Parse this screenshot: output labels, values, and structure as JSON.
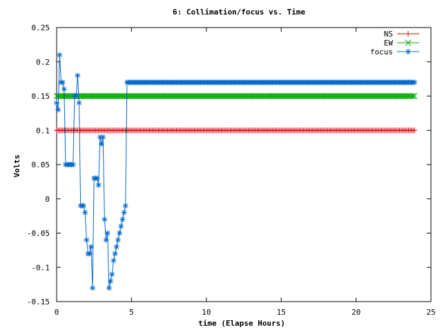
{
  "chart_data": {
    "type": "line",
    "title": "6: Collimation/focus vs. Time",
    "xlabel": "time (Elapse Hours)",
    "ylabel": "Volts",
    "xlim": [
      0,
      25
    ],
    "ylim": [
      -0.15,
      0.25
    ],
    "xticks": [
      0,
      5,
      10,
      15,
      20,
      25
    ],
    "xtick_labels": [
      "0",
      "5",
      "10",
      "15",
      "20",
      "25"
    ],
    "yticks": [
      -0.15,
      -0.1,
      -0.05,
      0,
      0.05,
      0.1,
      0.15,
      0.2,
      0.25
    ],
    "ytick_labels": [
      "-0.15",
      "-0.1",
      "-0.05",
      "0",
      "0.05",
      "0.1",
      "0.15",
      "0.2",
      "0.25"
    ],
    "grid": false,
    "legend": "top-right",
    "series": [
      {
        "name": "NS",
        "color": "#cc0000",
        "marker": "plus",
        "x_start": 0,
        "x_end": 23.9,
        "x_step": 0.1,
        "constant": 0.1
      },
      {
        "name": "EW",
        "color": "#00aa00",
        "marker": "cross",
        "x_start": 0,
        "x_end": 23.9,
        "x_step": 0.1,
        "constant": 0.15
      },
      {
        "name": "focus",
        "color": "#0066cc",
        "marker": "star",
        "x": [
          0.0,
          0.1,
          0.2,
          0.3,
          0.4,
          0.5,
          0.6,
          0.7,
          0.8,
          0.9,
          1.0,
          1.1,
          1.2,
          1.3,
          1.4,
          1.5,
          1.6,
          1.7,
          1.8,
          1.9,
          2.0,
          2.1,
          2.2,
          2.3,
          2.4,
          2.5,
          2.6,
          2.7,
          2.8,
          2.9,
          3.0,
          3.1,
          3.2,
          3.3,
          3.4,
          3.5,
          3.6,
          3.7,
          3.8,
          3.9,
          4.0,
          4.1,
          4.2,
          4.3,
          4.4,
          4.5,
          4.6,
          4.7,
          4.8,
          4.9,
          5.0,
          5.1,
          5.2,
          5.3,
          5.4,
          5.5
        ],
        "values": [
          0.14,
          0.13,
          0.21,
          0.17,
          0.17,
          0.16,
          0.05,
          0.05,
          0.05,
          0.05,
          0.05,
          0.05,
          0.15,
          0.15,
          0.18,
          0.14,
          -0.01,
          -0.01,
          -0.01,
          -0.02,
          -0.06,
          -0.08,
          -0.08,
          -0.07,
          -0.13,
          0.03,
          0.03,
          0.03,
          0.02,
          0.09,
          0.08,
          0.09,
          -0.03,
          -0.06,
          -0.05,
          -0.13,
          -0.12,
          -0.11,
          -0.09,
          -0.08,
          -0.07,
          -0.06,
          -0.05,
          -0.04,
          -0.03,
          -0.02,
          -0.01,
          0.17,
          0.17,
          0.17,
          0.17,
          0.17,
          0.17,
          0.17,
          0.17,
          0.17
        ],
        "x_const_start": 5.6,
        "x_const_end": 23.9,
        "constant_after": 0.17
      }
    ]
  }
}
